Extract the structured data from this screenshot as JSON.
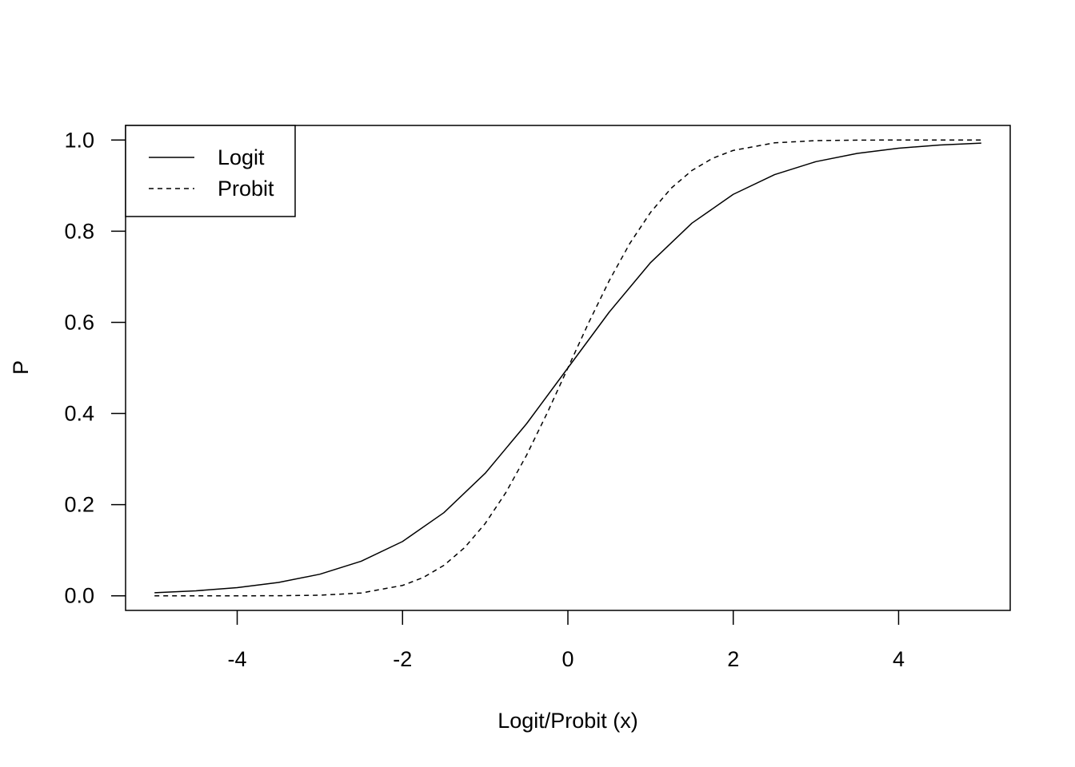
{
  "chart_data": {
    "type": "line",
    "title": "",
    "xlabel": "Logit/Probit (x)",
    "ylabel": "P",
    "xlim": [
      -5.35,
      5.35
    ],
    "ylim": [
      -0.032,
      1.032
    ],
    "x_ticks": [
      -4,
      -2,
      0,
      2,
      4
    ],
    "x_tick_labels": [
      "-4",
      "-2",
      "0",
      "2",
      "4"
    ],
    "y_ticks": [
      0.0,
      0.2,
      0.4,
      0.6,
      0.8,
      1.0
    ],
    "y_tick_labels": [
      "0.0",
      "0.2",
      "0.4",
      "0.6",
      "0.8",
      "1.0"
    ],
    "grid": false,
    "legend_position": "top-left",
    "series": [
      {
        "name": "Logit",
        "line_style": "solid",
        "x": [
          -5,
          -4.5,
          -4,
          -3.5,
          -3,
          -2.5,
          -2,
          -1.5,
          -1,
          -0.5,
          0,
          0.5,
          1,
          1.5,
          2,
          2.5,
          3,
          3.5,
          4,
          4.5,
          5
        ],
        "y": [
          0.0067,
          0.011,
          0.018,
          0.0293,
          0.0474,
          0.0759,
          0.1192,
          0.1824,
          0.2689,
          0.3775,
          0.5,
          0.6225,
          0.7311,
          0.8176,
          0.8808,
          0.9241,
          0.9526,
          0.9707,
          0.982,
          0.989,
          0.9933
        ]
      },
      {
        "name": "Probit",
        "line_style": "dashed",
        "x": [
          -5,
          -4.5,
          -4,
          -3.5,
          -3,
          -2.5,
          -2,
          -1.75,
          -1.5,
          -1.25,
          -1,
          -0.75,
          -0.5,
          -0.25,
          0,
          0.25,
          0.5,
          0.75,
          1,
          1.25,
          1.5,
          1.75,
          2,
          2.5,
          3,
          3.5,
          4,
          4.5,
          5
        ],
        "y": [
          0.0,
          0.0,
          0.0,
          0.0002,
          0.0013,
          0.0062,
          0.0228,
          0.0401,
          0.0668,
          0.1056,
          0.1587,
          0.2266,
          0.3085,
          0.4013,
          0.5,
          0.5987,
          0.6915,
          0.7734,
          0.8413,
          0.8944,
          0.9332,
          0.9599,
          0.9772,
          0.9938,
          0.9987,
          0.9998,
          1.0,
          1.0,
          1.0
        ]
      }
    ]
  }
}
